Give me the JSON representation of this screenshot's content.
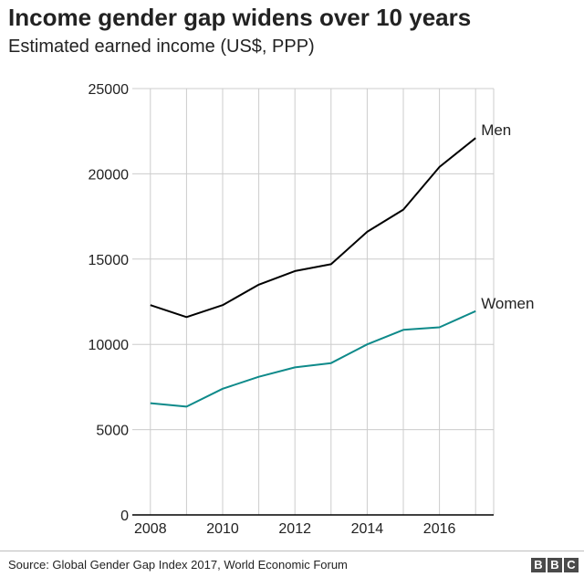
{
  "title": "Income gender gap widens over 10 years",
  "subtitle": "Estimated earned income (US$, PPP)",
  "source": "Source: Global Gender Gap Index 2017, World Economic Forum",
  "logo": [
    "B",
    "B",
    "C"
  ],
  "colors": {
    "men": "#000000",
    "women": "#0e8a8a",
    "grid": "#cccccc",
    "axis": "#000000"
  },
  "chart_data": {
    "type": "line",
    "title": "Income gender gap widens over 10 years",
    "subtitle": "Estimated earned income (US$, PPP)",
    "xlabel": "",
    "ylabel": "",
    "x": [
      2008,
      2009,
      2010,
      2011,
      2012,
      2013,
      2014,
      2015,
      2016,
      2017
    ],
    "xticks": [
      2008,
      2010,
      2012,
      2014,
      2016
    ],
    "xlim": [
      2007.5,
      2017.5
    ],
    "ylim": [
      0,
      25000
    ],
    "yticks": [
      0,
      5000,
      10000,
      15000,
      20000,
      25000
    ],
    "grid": true,
    "legend": "direct labels at line ends",
    "series": [
      {
        "name": "Men",
        "color": "#000000",
        "values": [
          12300,
          11600,
          12300,
          13500,
          14300,
          14700,
          16600,
          17900,
          20400,
          22100
        ]
      },
      {
        "name": "Women",
        "color": "#0e8a8a",
        "values": [
          6550,
          6350,
          7400,
          8100,
          8650,
          8900,
          10000,
          10850,
          11000,
          11950
        ]
      }
    ]
  }
}
